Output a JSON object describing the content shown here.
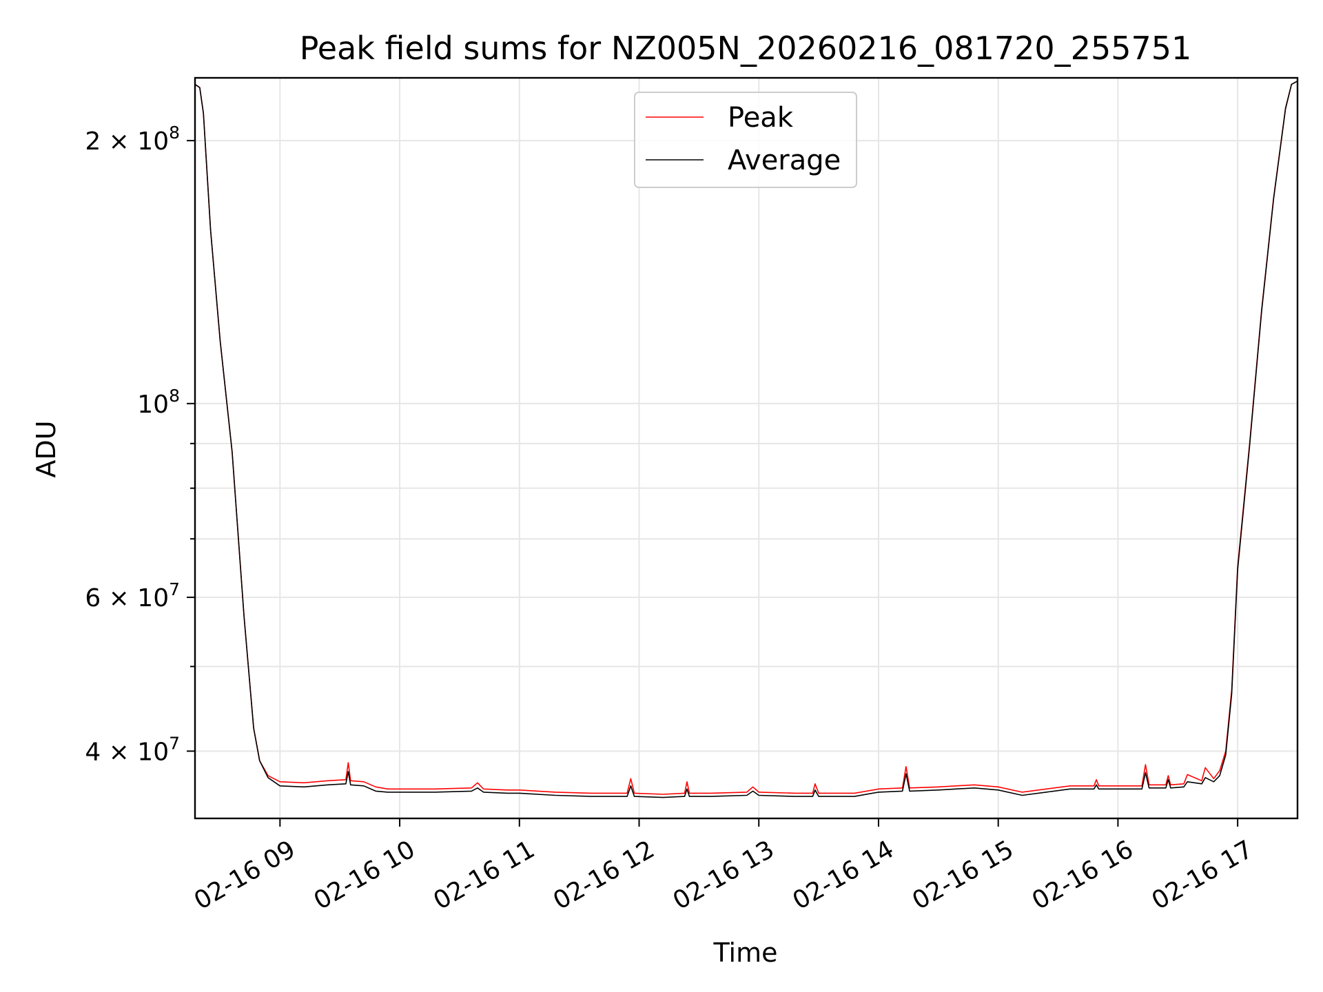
{
  "chart_data": {
    "type": "line",
    "title": "Peak field sums for NZ005N_20260216_081720_255751",
    "xlabel": "Time",
    "ylabel": "ADU",
    "y_scale": "log",
    "xlim_hours": [
      8.29,
      17.5
    ],
    "ylim": [
      33500000,
      236000000
    ],
    "grid": true,
    "legend_position": "upper center",
    "x_ticks": [
      {
        "value": 9,
        "label": "02-16 09"
      },
      {
        "value": 10,
        "label": "02-16 10"
      },
      {
        "value": 11,
        "label": "02-16 11"
      },
      {
        "value": 12,
        "label": "02-16 12"
      },
      {
        "value": 13,
        "label": "02-16 13"
      },
      {
        "value": 14,
        "label": "02-16 14"
      },
      {
        "value": 15,
        "label": "02-16 15"
      },
      {
        "value": 16,
        "label": "02-16 16"
      },
      {
        "value": 17,
        "label": "02-16 17"
      }
    ],
    "y_major_ticks": [
      {
        "value": 40000000,
        "base": "4 × 10",
        "exp": "7"
      },
      {
        "value": 60000000,
        "base": "6 × 10",
        "exp": "7"
      },
      {
        "value": 100000000,
        "base": "10",
        "exp": "8"
      },
      {
        "value": 200000000,
        "base": "2 × 10",
        "exp": "8"
      }
    ],
    "y_minor_ticks": [
      50000000,
      70000000,
      80000000,
      90000000
    ],
    "series": [
      {
        "name": "Peak",
        "color": "#ff0000",
        "x": [
          8.29,
          8.33,
          8.36,
          8.42,
          8.5,
          8.6,
          8.7,
          8.78,
          8.83,
          8.9,
          9.0,
          9.2,
          9.4,
          9.55,
          9.57,
          9.59,
          9.7,
          9.8,
          9.9,
          10.0,
          10.3,
          10.6,
          10.65,
          10.7,
          10.9,
          11.0,
          11.3,
          11.6,
          11.9,
          11.93,
          11.96,
          12.2,
          12.38,
          12.4,
          12.42,
          12.6,
          12.9,
          12.95,
          13.0,
          13.3,
          13.45,
          13.47,
          13.5,
          13.8,
          14.0,
          14.2,
          14.23,
          14.26,
          14.5,
          14.8,
          15.0,
          15.2,
          15.4,
          15.6,
          15.8,
          15.82,
          15.84,
          16.0,
          16.2,
          16.23,
          16.26,
          16.4,
          16.42,
          16.44,
          16.55,
          16.58,
          16.7,
          16.73,
          16.8,
          16.85,
          16.9,
          16.95,
          17.0,
          17.1,
          17.2,
          17.3,
          17.4,
          17.45,
          17.5
        ],
        "y": [
          232000000,
          230000000,
          215000000,
          158000000,
          118000000,
          88000000,
          57000000,
          42500000,
          39000000,
          37500000,
          36900000,
          36800000,
          37000000,
          37100000,
          38800000,
          37000000,
          36900000,
          36400000,
          36200000,
          36200000,
          36200000,
          36300000,
          36800000,
          36200000,
          36100000,
          36100000,
          35900000,
          35800000,
          35800000,
          37200000,
          35800000,
          35700000,
          35800000,
          36900000,
          35800000,
          35800000,
          35900000,
          36400000,
          35900000,
          35800000,
          35800000,
          36700000,
          35800000,
          35800000,
          36200000,
          36300000,
          38400000,
          36300000,
          36400000,
          36600000,
          36400000,
          35900000,
          36200000,
          36500000,
          36500000,
          37100000,
          36500000,
          36500000,
          36500000,
          38600000,
          36600000,
          36600000,
          37500000,
          36600000,
          36700000,
          37600000,
          37000000,
          38300000,
          37200000,
          38000000,
          40000000,
          47000000,
          65000000,
          90000000,
          128000000,
          172000000,
          218000000,
          232000000,
          234000000
        ]
      },
      {
        "name": "Average",
        "color": "#000000",
        "x": [
          8.29,
          8.33,
          8.36,
          8.42,
          8.5,
          8.6,
          8.7,
          8.78,
          8.83,
          8.9,
          9.0,
          9.2,
          9.4,
          9.55,
          9.57,
          9.59,
          9.7,
          9.8,
          9.9,
          10.0,
          10.3,
          10.6,
          10.65,
          10.7,
          10.9,
          11.0,
          11.3,
          11.6,
          11.9,
          11.93,
          11.96,
          12.2,
          12.38,
          12.4,
          12.42,
          12.6,
          12.9,
          12.95,
          13.0,
          13.3,
          13.45,
          13.47,
          13.5,
          13.8,
          14.0,
          14.2,
          14.23,
          14.26,
          14.5,
          14.8,
          15.0,
          15.2,
          15.4,
          15.6,
          15.8,
          15.82,
          15.84,
          16.0,
          16.2,
          16.23,
          16.26,
          16.4,
          16.42,
          16.44,
          16.55,
          16.58,
          16.7,
          16.73,
          16.8,
          16.85,
          16.9,
          16.95,
          17.0,
          17.1,
          17.2,
          17.3,
          17.4,
          17.45,
          17.5
        ],
        "y": [
          232000000,
          230000000,
          215000000,
          158000000,
          118000000,
          88000000,
          57000000,
          42500000,
          39000000,
          37300000,
          36500000,
          36400000,
          36600000,
          36700000,
          37900000,
          36600000,
          36500000,
          36000000,
          35900000,
          35900000,
          35900000,
          36000000,
          36300000,
          35900000,
          35800000,
          35800000,
          35600000,
          35500000,
          35500000,
          36500000,
          35500000,
          35400000,
          35500000,
          36200000,
          35500000,
          35500000,
          35600000,
          36000000,
          35600000,
          35500000,
          35500000,
          36100000,
          35500000,
          35500000,
          35900000,
          36000000,
          37700000,
          36000000,
          36100000,
          36300000,
          36100000,
          35600000,
          35900000,
          36200000,
          36200000,
          36600000,
          36200000,
          36200000,
          36200000,
          37800000,
          36300000,
          36300000,
          37100000,
          36300000,
          36400000,
          36900000,
          36700000,
          37300000,
          36900000,
          37500000,
          39600000,
          46500000,
          64500000,
          89500000,
          127500000,
          171500000,
          217500000,
          232000000,
          234000000
        ]
      }
    ]
  }
}
